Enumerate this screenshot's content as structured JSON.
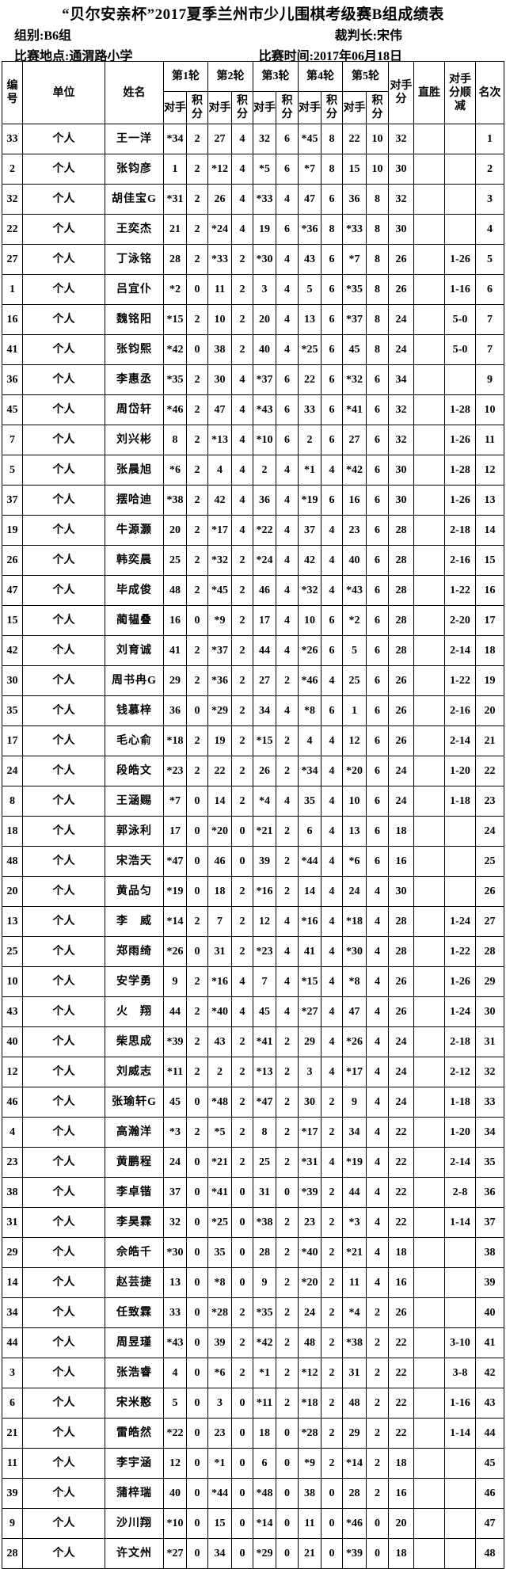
{
  "header": {
    "title": "“贝尔安亲杯”2017夏季兰州市少儿围棋考级赛B组成绩表",
    "group_label": "组别:B6组",
    "referee_label": "裁判长:宋伟",
    "venue_label": "比赛地点:通渭路小学",
    "date_label": "比赛时间:2017年06月18日"
  },
  "table": {
    "columns": {
      "id": "编号",
      "unit": "单位",
      "name": "姓名",
      "rounds": [
        "第1轮",
        "第2轮",
        "第3轮",
        "第4轮",
        "第5轮"
      ],
      "opponent": "对手",
      "score": "积分",
      "opponents_score": "对手分",
      "direct_win": "直胜",
      "tiebreak": "对手分顺减",
      "rank": "名次"
    },
    "rows": [
      [
        "33",
        "个人",
        "王一洋",
        "*34",
        "2",
        "27",
        "4",
        "32",
        "6",
        "*45",
        "8",
        "22",
        "10",
        "32",
        "",
        "",
        "1"
      ],
      [
        "2",
        "个人",
        "张钧彦",
        "1",
        "2",
        "*12",
        "4",
        "*5",
        "6",
        "*7",
        "8",
        "15",
        "10",
        "30",
        "",
        "",
        "2"
      ],
      [
        "32",
        "个人",
        "胡佳宝G",
        "*31",
        "2",
        "26",
        "4",
        "*33",
        "4",
        "47",
        "6",
        "36",
        "8",
        "32",
        "",
        "",
        "3"
      ],
      [
        "22",
        "个人",
        "王奕杰",
        "21",
        "2",
        "*24",
        "4",
        "19",
        "6",
        "*36",
        "8",
        "*33",
        "8",
        "30",
        "",
        "",
        "4"
      ],
      [
        "27",
        "个人",
        "丁泳铭",
        "28",
        "2",
        "*33",
        "2",
        "*30",
        "4",
        "43",
        "6",
        "*7",
        "8",
        "26",
        "",
        "1-26",
        "5"
      ],
      [
        "1",
        "个人",
        "吕宜仆",
        "*2",
        "0",
        "11",
        "2",
        "3",
        "4",
        "5",
        "6",
        "*35",
        "8",
        "26",
        "",
        "1-16",
        "6"
      ],
      [
        "16",
        "个人",
        "魏铭阳",
        "*15",
        "2",
        "10",
        "2",
        "20",
        "4",
        "13",
        "6",
        "*37",
        "8",
        "24",
        "",
        "5-0",
        "7"
      ],
      [
        "41",
        "个人",
        "张钧熙",
        "*42",
        "0",
        "38",
        "2",
        "40",
        "4",
        "*25",
        "6",
        "45",
        "8",
        "24",
        "",
        "5-0",
        "7"
      ],
      [
        "36",
        "个人",
        "李惠丞",
        "*35",
        "2",
        "30",
        "4",
        "*37",
        "6",
        "22",
        "6",
        "*32",
        "6",
        "34",
        "",
        "",
        "9"
      ],
      [
        "45",
        "个人",
        "周岱轩",
        "*46",
        "2",
        "47",
        "4",
        "*43",
        "6",
        "33",
        "6",
        "*41",
        "6",
        "32",
        "",
        "1-28",
        "10"
      ],
      [
        "7",
        "个人",
        "刘兴彬",
        "8",
        "2",
        "*13",
        "4",
        "*10",
        "6",
        "2",
        "6",
        "27",
        "6",
        "32",
        "",
        "1-26",
        "11"
      ],
      [
        "5",
        "个人",
        "张晨旭",
        "*6",
        "2",
        "4",
        "4",
        "2",
        "4",
        "*1",
        "4",
        "*42",
        "6",
        "30",
        "",
        "1-28",
        "12"
      ],
      [
        "37",
        "个人",
        "摆哈迪",
        "*38",
        "2",
        "42",
        "4",
        "36",
        "4",
        "*19",
        "6",
        "16",
        "6",
        "30",
        "",
        "1-26",
        "13"
      ],
      [
        "19",
        "个人",
        "牛源灏",
        "20",
        "2",
        "*17",
        "4",
        "*22",
        "4",
        "37",
        "4",
        "23",
        "6",
        "28",
        "",
        "2-18",
        "14"
      ],
      [
        "26",
        "个人",
        "韩奕晨",
        "25",
        "2",
        "*32",
        "2",
        "*24",
        "4",
        "42",
        "4",
        "40",
        "6",
        "28",
        "",
        "2-16",
        "15"
      ],
      [
        "47",
        "个人",
        "毕成俊",
        "48",
        "2",
        "*45",
        "2",
        "46",
        "4",
        "*32",
        "4",
        "*43",
        "6",
        "28",
        "",
        "1-22",
        "16"
      ],
      [
        "15",
        "个人",
        "蔺韫叠",
        "16",
        "0",
        "*9",
        "2",
        "17",
        "4",
        "10",
        "6",
        "*2",
        "6",
        "28",
        "",
        "2-20",
        "17"
      ],
      [
        "42",
        "个人",
        "刘育诚",
        "41",
        "2",
        "*37",
        "2",
        "44",
        "4",
        "*26",
        "6",
        "5",
        "6",
        "28",
        "",
        "2-14",
        "18"
      ],
      [
        "30",
        "个人",
        "周书冉G",
        "29",
        "2",
        "*36",
        "2",
        "27",
        "2",
        "*46",
        "4",
        "25",
        "6",
        "26",
        "",
        "1-22",
        "19"
      ],
      [
        "35",
        "个人",
        "钱慕梓",
        "36",
        "0",
        "*29",
        "2",
        "34",
        "4",
        "*8",
        "6",
        "1",
        "6",
        "26",
        "",
        "2-16",
        "20"
      ],
      [
        "17",
        "个人",
        "毛心俞",
        "*18",
        "2",
        "19",
        "2",
        "*15",
        "2",
        "4",
        "4",
        "12",
        "6",
        "26",
        "",
        "2-14",
        "21"
      ],
      [
        "24",
        "个人",
        "段皓文",
        "*23",
        "2",
        "22",
        "2",
        "26",
        "2",
        "*34",
        "4",
        "*20",
        "6",
        "24",
        "",
        "1-20",
        "22"
      ],
      [
        "8",
        "个人",
        "王涵赐",
        "*7",
        "0",
        "14",
        "2",
        "*4",
        "4",
        "35",
        "4",
        "10",
        "6",
        "24",
        "",
        "1-18",
        "23"
      ],
      [
        "18",
        "个人",
        "郭泳利",
        "17",
        "0",
        "*20",
        "0",
        "*21",
        "2",
        "6",
        "4",
        "13",
        "6",
        "18",
        "",
        "",
        "24"
      ],
      [
        "48",
        "个人",
        "宋浩天",
        "*47",
        "0",
        "46",
        "0",
        "39",
        "2",
        "*44",
        "4",
        "*6",
        "6",
        "16",
        "",
        "",
        "25"
      ],
      [
        "20",
        "个人",
        "黄品匀",
        "*19",
        "0",
        "18",
        "2",
        "*16",
        "2",
        "14",
        "4",
        "24",
        "4",
        "30",
        "",
        "",
        "26"
      ],
      [
        "13",
        "个人",
        "李　威",
        "*14",
        "2",
        "7",
        "2",
        "12",
        "4",
        "*16",
        "4",
        "*18",
        "4",
        "28",
        "",
        "1-24",
        "27"
      ],
      [
        "25",
        "个人",
        "郑雨绮",
        "*26",
        "0",
        "31",
        "2",
        "*23",
        "4",
        "41",
        "4",
        "*30",
        "4",
        "28",
        "",
        "1-22",
        "28"
      ],
      [
        "10",
        "个人",
        "安学勇",
        "9",
        "2",
        "*16",
        "4",
        "7",
        "4",
        "*15",
        "4",
        "*8",
        "4",
        "26",
        "",
        "1-26",
        "29"
      ],
      [
        "43",
        "个人",
        "火　翔",
        "44",
        "2",
        "*40",
        "4",
        "45",
        "4",
        "*27",
        "4",
        "47",
        "4",
        "26",
        "",
        "1-24",
        "30"
      ],
      [
        "40",
        "个人",
        "柴思成",
        "*39",
        "2",
        "43",
        "2",
        "*41",
        "2",
        "29",
        "4",
        "*26",
        "4",
        "24",
        "",
        "2-18",
        "31"
      ],
      [
        "12",
        "个人",
        "刘威志",
        "*11",
        "2",
        "2",
        "2",
        "*13",
        "2",
        "3",
        "4",
        "*17",
        "4",
        "24",
        "",
        "2-12",
        "32"
      ],
      [
        "46",
        "个人",
        "张瑜轩G",
        "45",
        "0",
        "*48",
        "2",
        "*47",
        "2",
        "30",
        "2",
        "9",
        "4",
        "24",
        "",
        "1-18",
        "33"
      ],
      [
        "4",
        "个人",
        "高瀚洋",
        "*3",
        "2",
        "*5",
        "2",
        "8",
        "2",
        "*17",
        "2",
        "34",
        "4",
        "22",
        "",
        "1-20",
        "34"
      ],
      [
        "23",
        "个人",
        "黄鹏程",
        "24",
        "0",
        "*21",
        "2",
        "25",
        "2",
        "*31",
        "4",
        "*19",
        "4",
        "22",
        "",
        "2-14",
        "35"
      ],
      [
        "38",
        "个人",
        "李卓锴",
        "37",
        "0",
        "*41",
        "0",
        "31",
        "0",
        "*39",
        "2",
        "44",
        "4",
        "22",
        "",
        "2-8",
        "36"
      ],
      [
        "31",
        "个人",
        "李昊霖",
        "32",
        "0",
        "*25",
        "0",
        "*38",
        "2",
        "23",
        "2",
        "*3",
        "4",
        "22",
        "",
        "1-14",
        "37"
      ],
      [
        "29",
        "个人",
        "佘皓千",
        "*30",
        "0",
        "35",
        "0",
        "28",
        "2",
        "*40",
        "2",
        "*21",
        "4",
        "18",
        "",
        "",
        "38"
      ],
      [
        "14",
        "个人",
        "赵芸捷",
        "13",
        "0",
        "*8",
        "0",
        "9",
        "2",
        "*20",
        "2",
        "11",
        "4",
        "16",
        "",
        "",
        "39"
      ],
      [
        "34",
        "个人",
        "任致霖",
        "33",
        "0",
        "*28",
        "2",
        "*35",
        "2",
        "24",
        "2",
        "*4",
        "2",
        "26",
        "",
        "",
        "40"
      ],
      [
        "44",
        "个人",
        "周昱瑾",
        "*43",
        "0",
        "39",
        "2",
        "*42",
        "2",
        "48",
        "2",
        "*38",
        "2",
        "22",
        "",
        "3-10",
        "41"
      ],
      [
        "3",
        "个人",
        "张浩睿",
        "4",
        "0",
        "*6",
        "2",
        "*1",
        "2",
        "*12",
        "2",
        "31",
        "2",
        "22",
        "",
        "3-8",
        "42"
      ],
      [
        "6",
        "个人",
        "宋米憨",
        "5",
        "0",
        "3",
        "0",
        "*11",
        "2",
        "*18",
        "2",
        "48",
        "2",
        "22",
        "",
        "1-16",
        "43"
      ],
      [
        "21",
        "个人",
        "雷皓然",
        "*22",
        "0",
        "23",
        "0",
        "18",
        "0",
        "*28",
        "2",
        "29",
        "2",
        "22",
        "",
        "1-14",
        "44"
      ],
      [
        "11",
        "个人",
        "李宇涵",
        "12",
        "0",
        "*1",
        "0",
        "6",
        "0",
        "*9",
        "2",
        "*14",
        "2",
        "18",
        "",
        "",
        "45"
      ],
      [
        "39",
        "个人",
        "蒲梓瑞",
        "40",
        "0",
        "*44",
        "0",
        "*48",
        "0",
        "38",
        "0",
        "28",
        "2",
        "16",
        "",
        "",
        "46"
      ],
      [
        "9",
        "个人",
        "沙川翔",
        "*10",
        "0",
        "15",
        "0",
        "*14",
        "0",
        "11",
        "0",
        "*46",
        "0",
        "20",
        "",
        "",
        "47"
      ],
      [
        "28",
        "个人",
        "许文州",
        "*27",
        "0",
        "34",
        "0",
        "*29",
        "0",
        "21",
        "0",
        "*39",
        "0",
        "18",
        "",
        "",
        "48"
      ]
    ]
  }
}
